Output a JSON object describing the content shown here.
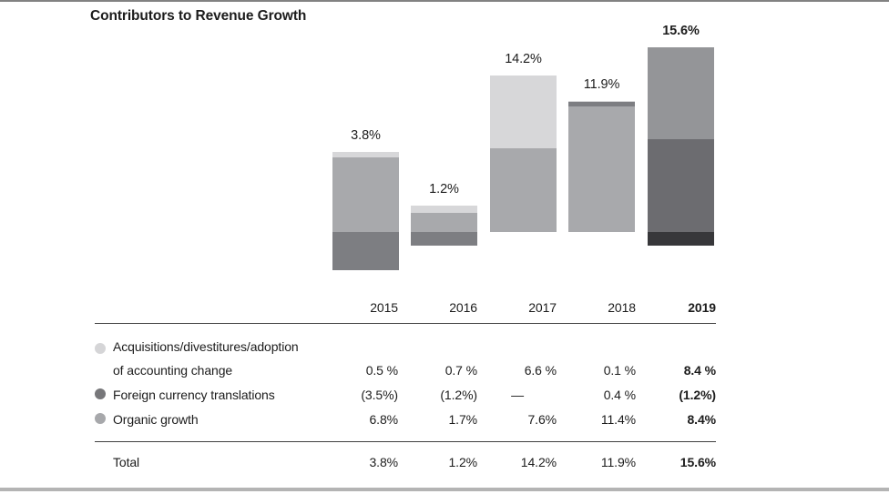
{
  "title": "Contributors to Revenue Growth",
  "chart_data": {
    "type": "bar",
    "subtype": "stacked-with-negatives",
    "title": "Contributors to Revenue Growth",
    "categories": [
      "2015",
      "2016",
      "2017",
      "2018",
      "2019"
    ],
    "series": [
      {
        "name": "Acquisitions/divestitures/adoption of accounting change",
        "values": [
          0.5,
          0.7,
          6.6,
          0.1,
          8.4
        ],
        "color": "#d7d7d9"
      },
      {
        "name": "Foreign currency translations",
        "values": [
          -3.5,
          -1.2,
          0,
          0.4,
          -1.2
        ],
        "color": "#7d7e82"
      },
      {
        "name": "Organic growth",
        "values": [
          6.8,
          1.7,
          7.6,
          11.4,
          8.4
        ],
        "color": "#a8a9ac"
      }
    ],
    "totals": [
      3.8,
      1.2,
      14.2,
      11.9,
      15.6
    ],
    "ylabel": "",
    "xlabel": "",
    "grid": false,
    "legend_position": "table-left",
    "highlight_year": "2019",
    "bars": [
      {
        "year": "2015",
        "label": "3.8%",
        "label_bold": false,
        "pos": [
          {
            "v": 0.5,
            "c": "#d7d7d9"
          },
          {
            "v": 6.8,
            "c": "#a8a9ac"
          }
        ],
        "neg": [
          {
            "v": 3.5,
            "c": "#7d7e82"
          }
        ]
      },
      {
        "year": "2016",
        "label": "1.2%",
        "label_bold": false,
        "pos": [
          {
            "v": 0.7,
            "c": "#d7d7d9"
          },
          {
            "v": 1.7,
            "c": "#a8a9ac"
          }
        ],
        "neg": [
          {
            "v": 1.2,
            "c": "#7d7e82"
          }
        ]
      },
      {
        "year": "2017",
        "label": "14.2%",
        "label_bold": false,
        "pos": [
          {
            "v": 6.6,
            "c": "#d7d7d9"
          },
          {
            "v": 7.6,
            "c": "#a8a9ac"
          }
        ],
        "neg": []
      },
      {
        "year": "2018",
        "label": "11.9%",
        "label_bold": false,
        "pos": [
          {
            "v": 0.1,
            "c": "#d7d7d9"
          },
          {
            "v": 0.4,
            "c": "#7d7e82"
          },
          {
            "v": 11.4,
            "c": "#a8a9ac"
          }
        ],
        "neg": []
      },
      {
        "year": "2019",
        "label": "15.6%",
        "label_bold": true,
        "pos": [
          {
            "v": 8.4,
            "c": "#949598"
          },
          {
            "v": 8.4,
            "c": "#6c6c70"
          }
        ],
        "neg": [
          {
            "v": 1.2,
            "c": "#37373a"
          }
        ]
      }
    ]
  },
  "table": {
    "year_headers": [
      "2015",
      "2016",
      "2017",
      "2018",
      "2019"
    ],
    "rows": [
      {
        "label_line1": "Acquisitions/divestitures/adoption",
        "label_line2": "of accounting change",
        "dot_color": "#d5d5d7",
        "values": [
          "0.5 %",
          "0.7 %",
          "6.6 %",
          "0.1 %",
          "8.4 %"
        ]
      },
      {
        "label": "Foreign currency translations",
        "dot_color": "#77777a",
        "values": [
          "(3.5%)",
          "(1.2%)",
          "—",
          "0.4 %",
          "(1.2%)"
        ]
      },
      {
        "label": "Organic growth",
        "dot_color": "#a7a8ab",
        "values": [
          "6.8%",
          "1.7%",
          "7.6%",
          "11.4%",
          "8.4%"
        ]
      }
    ],
    "total_row": {
      "label": "Total",
      "values": [
        "3.8%",
        "1.2%",
        "14.2%",
        "11.9%",
        "15.6%"
      ]
    }
  },
  "colors": {
    "acquisitions": "#d7d7d9",
    "organic": "#a8a9ac",
    "foreign_currency": "#7d7e82",
    "acquisitions_2019": "#949598",
    "organic_2019": "#6c6c70",
    "foreign_currency_2019": "#37373a",
    "top_rule": "#828282",
    "bottom_rule": "#b4b4b4",
    "table_rule": "#414141",
    "text": "#1c1c1c"
  }
}
